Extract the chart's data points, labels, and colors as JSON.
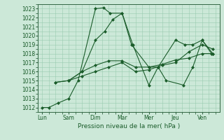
{
  "xlabel": "Pression niveau de la mer( hPa )",
  "background_color": "#cce8d8",
  "grid_color": "#99ccb0",
  "line_color": "#1a5c2a",
  "ylim": [
    1011.5,
    1023.5
  ],
  "yticks": [
    1012,
    1013,
    1014,
    1015,
    1016,
    1017,
    1018,
    1019,
    1020,
    1021,
    1022,
    1023
  ],
  "day_labels": [
    "Lun",
    "Sam",
    "Dim",
    "Mar",
    "Mer",
    "Jeu",
    "Ven"
  ],
  "day_positions": [
    0,
    1,
    2,
    3,
    4,
    5,
    6
  ],
  "xlim": [
    -0.15,
    6.65
  ],
  "lines": [
    {
      "x": [
        0.0,
        0.25,
        0.6,
        1.0,
        1.35,
        2.0,
        2.3,
        2.55,
        3.0,
        3.35,
        4.0,
        4.35,
        4.65,
        5.3,
        5.65,
        6.0,
        6.4
      ],
      "y": [
        1012.0,
        1012.0,
        1012.5,
        1013.0,
        1015.0,
        1023.0,
        1023.1,
        1022.5,
        1022.5,
        1019.0,
        1016.5,
        1016.5,
        1015.0,
        1014.5,
        1016.5,
        1019.5,
        1018.0
      ]
    },
    {
      "x": [
        0.5,
        1.0,
        1.5,
        2.0,
        2.5,
        3.0,
        3.5,
        4.0,
        4.5,
        5.0,
        5.5,
        6.0,
        6.4
      ],
      "y": [
        1014.8,
        1015.0,
        1016.0,
        1016.7,
        1017.2,
        1017.2,
        1016.5,
        1016.5,
        1016.8,
        1017.3,
        1017.5,
        1018.0,
        1018.0
      ]
    },
    {
      "x": [
        0.5,
        1.0,
        1.5,
        2.0,
        2.5,
        3.0,
        3.5,
        4.0,
        4.5,
        5.0,
        5.5,
        6.0,
        6.4
      ],
      "y": [
        1014.8,
        1015.0,
        1015.5,
        1016.0,
        1016.5,
        1017.0,
        1016.0,
        1016.2,
        1016.7,
        1017.0,
        1018.2,
        1019.0,
        1018.5
      ]
    },
    {
      "x": [
        1.0,
        1.5,
        2.0,
        2.35,
        2.65,
        3.0,
        3.4,
        4.0,
        4.35,
        5.0,
        5.35,
        5.65,
        6.0,
        6.35
      ],
      "y": [
        1015.0,
        1016.0,
        1019.5,
        1020.5,
        1021.8,
        1022.5,
        1019.0,
        1014.5,
        1016.5,
        1019.5,
        1019.0,
        1019.0,
        1019.5,
        1018.0
      ]
    }
  ]
}
